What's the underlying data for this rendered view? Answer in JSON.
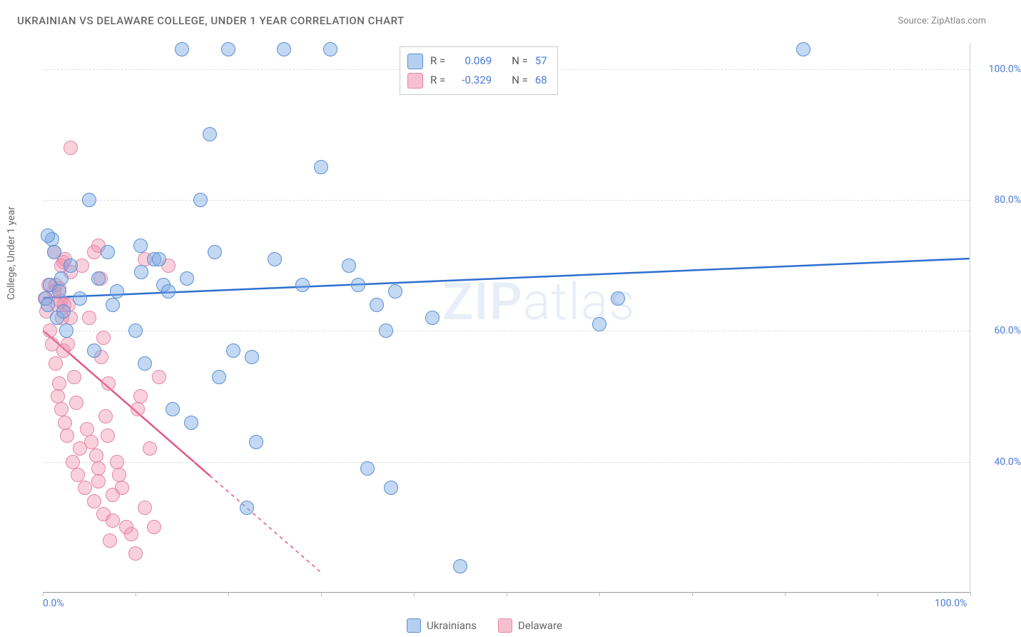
{
  "title": "UKRAINIAN VS DELAWARE COLLEGE, UNDER 1 YEAR CORRELATION CHART",
  "source": "Source: ZipAtlas.com",
  "watermark_bold": "ZIP",
  "watermark_light": "atlas",
  "y_axis": {
    "label": "College, Under 1 year",
    "ticks": [
      {
        "value": 100,
        "label": "100.0%"
      },
      {
        "value": 80,
        "label": "80.0%"
      },
      {
        "value": 60,
        "label": "60.0%"
      },
      {
        "value": 40,
        "label": "40.0%"
      }
    ],
    "min": 20,
    "max": 104
  },
  "x_axis": {
    "min": 0,
    "max": 100,
    "tick_values": [
      0,
      10,
      20,
      30,
      40,
      50,
      60,
      70,
      80,
      90,
      100
    ],
    "end_labels": [
      {
        "value": 0,
        "label": "0.0%"
      },
      {
        "value": 100,
        "label": "100.0%"
      }
    ]
  },
  "gridline_color": "#dddddd",
  "border_color": "#cccccc",
  "tick_label_color": "#4a7bd6",
  "series": {
    "ukrainians": {
      "name": "Ukrainians",
      "marker_fill": "rgba(122,168,226,0.45)",
      "marker_stroke": "#5a8fd6",
      "swatch_fill": "rgba(122,168,226,0.55)",
      "swatch_stroke": "#5a8fd6",
      "line_color": "#2f6fd0",
      "marker_radius": 10,
      "R_label": "R =",
      "R": "0.069",
      "N_label": "N =",
      "N": "57",
      "trend": {
        "x1": 0,
        "y1": 65,
        "x2": 100,
        "y2": 71,
        "dashed_from": null
      },
      "points": [
        [
          0.3,
          65
        ],
        [
          0.5,
          64
        ],
        [
          0.8,
          67
        ],
        [
          1,
          74
        ],
        [
          1.2,
          72
        ],
        [
          1.5,
          62
        ],
        [
          1.8,
          66
        ],
        [
          2,
          68
        ],
        [
          2.2,
          63
        ],
        [
          2.5,
          60
        ],
        [
          3,
          70
        ],
        [
          0.5,
          74.5
        ],
        [
          4,
          65
        ],
        [
          5,
          80
        ],
        [
          5.5,
          57
        ],
        [
          6,
          68
        ],
        [
          7,
          72
        ],
        [
          7.5,
          64
        ],
        [
          8,
          66
        ],
        [
          10,
          60
        ],
        [
          11,
          55
        ],
        [
          12,
          71
        ],
        [
          13,
          67
        ],
        [
          14,
          48
        ],
        [
          15,
          103
        ],
        [
          16,
          46
        ],
        [
          17,
          80
        ],
        [
          18,
          90
        ],
        [
          18.5,
          72
        ],
        [
          19,
          53
        ],
        [
          20,
          103
        ],
        [
          20.5,
          57
        ],
        [
          22,
          33
        ],
        [
          22.5,
          56
        ],
        [
          23,
          43
        ],
        [
          25,
          71
        ],
        [
          26,
          103
        ],
        [
          28,
          67
        ],
        [
          30,
          85
        ],
        [
          31,
          103
        ],
        [
          33,
          70
        ],
        [
          34,
          67
        ],
        [
          35,
          39
        ],
        [
          36,
          64
        ],
        [
          37,
          60
        ],
        [
          37.5,
          36
        ],
        [
          38,
          66
        ],
        [
          42,
          62
        ],
        [
          45,
          24
        ],
        [
          60,
          61
        ],
        [
          62,
          65
        ],
        [
          82,
          103
        ],
        [
          15.5,
          68
        ],
        [
          10.5,
          73
        ],
        [
          10.6,
          69
        ],
        [
          12.5,
          71
        ],
        [
          13.5,
          66
        ]
      ]
    },
    "delaware": {
      "name": "Delaware",
      "marker_fill": "rgba(240,140,170,0.40)",
      "marker_stroke": "#e386a9",
      "swatch_fill": "rgba(240,140,170,0.55)",
      "swatch_stroke": "#e386a9",
      "line_color": "#e35587",
      "marker_radius": 10,
      "R_label": "R =",
      "R": "-0.329",
      "N_label": "N =",
      "N": "68",
      "trend": {
        "x1": 0,
        "y1": 60,
        "x2": 30,
        "y2": 23,
        "dashed_from": 18
      },
      "points": [
        [
          0.2,
          65
        ],
        [
          0.4,
          63
        ],
        [
          0.6,
          67
        ],
        [
          0.8,
          60
        ],
        [
          1,
          58
        ],
        [
          1.2,
          72
        ],
        [
          1.4,
          55
        ],
        [
          1.6,
          50
        ],
        [
          1.8,
          52
        ],
        [
          2,
          48
        ],
        [
          2.2,
          57
        ],
        [
          2.4,
          46
        ],
        [
          2.6,
          44
        ],
        [
          2.8,
          64
        ],
        [
          3,
          69
        ],
        [
          3.2,
          40
        ],
        [
          3.4,
          53
        ],
        [
          3.6,
          49
        ],
        [
          3.8,
          38
        ],
        [
          4,
          42
        ],
        [
          4.2,
          70
        ],
        [
          4.5,
          36
        ],
        [
          4.8,
          45
        ],
        [
          5,
          62
        ],
        [
          5.2,
          43
        ],
        [
          5.5,
          34
        ],
        [
          5.8,
          41
        ],
        [
          6,
          39
        ],
        [
          6.2,
          68
        ],
        [
          6.5,
          32
        ],
        [
          6.8,
          47
        ],
        [
          7,
          44
        ],
        [
          7.2,
          28
        ],
        [
          7.5,
          31
        ],
        [
          8,
          40
        ],
        [
          8.5,
          36
        ],
        [
          9,
          30
        ],
        [
          9.5,
          29
        ],
        [
          10,
          26
        ],
        [
          10.2,
          48
        ],
        [
          10.5,
          50
        ],
        [
          11,
          33
        ],
        [
          11.5,
          42
        ],
        [
          12,
          30
        ],
        [
          12.5,
          53
        ],
        [
          5.5,
          72
        ],
        [
          1.2,
          66
        ],
        [
          1.4,
          67
        ],
        [
          1.6,
          64
        ],
        [
          1.8,
          66.5
        ],
        [
          1.9,
          64.5
        ],
        [
          2.1,
          62
        ],
        [
          2.3,
          64
        ],
        [
          2.7,
          58
        ],
        [
          3,
          62
        ],
        [
          6,
          37
        ],
        [
          7.5,
          35
        ],
        [
          8.2,
          38
        ],
        [
          3,
          88
        ],
        [
          6.3,
          56
        ],
        [
          6.5,
          59
        ],
        [
          11,
          71
        ],
        [
          7.1,
          52
        ],
        [
          6,
          73
        ],
        [
          13.5,
          70
        ],
        [
          2,
          70
        ],
        [
          2.2,
          70.5
        ],
        [
          2.4,
          71
        ]
      ]
    }
  },
  "legend_bottom": [
    {
      "key": "ukrainians"
    },
    {
      "key": "delaware"
    }
  ]
}
